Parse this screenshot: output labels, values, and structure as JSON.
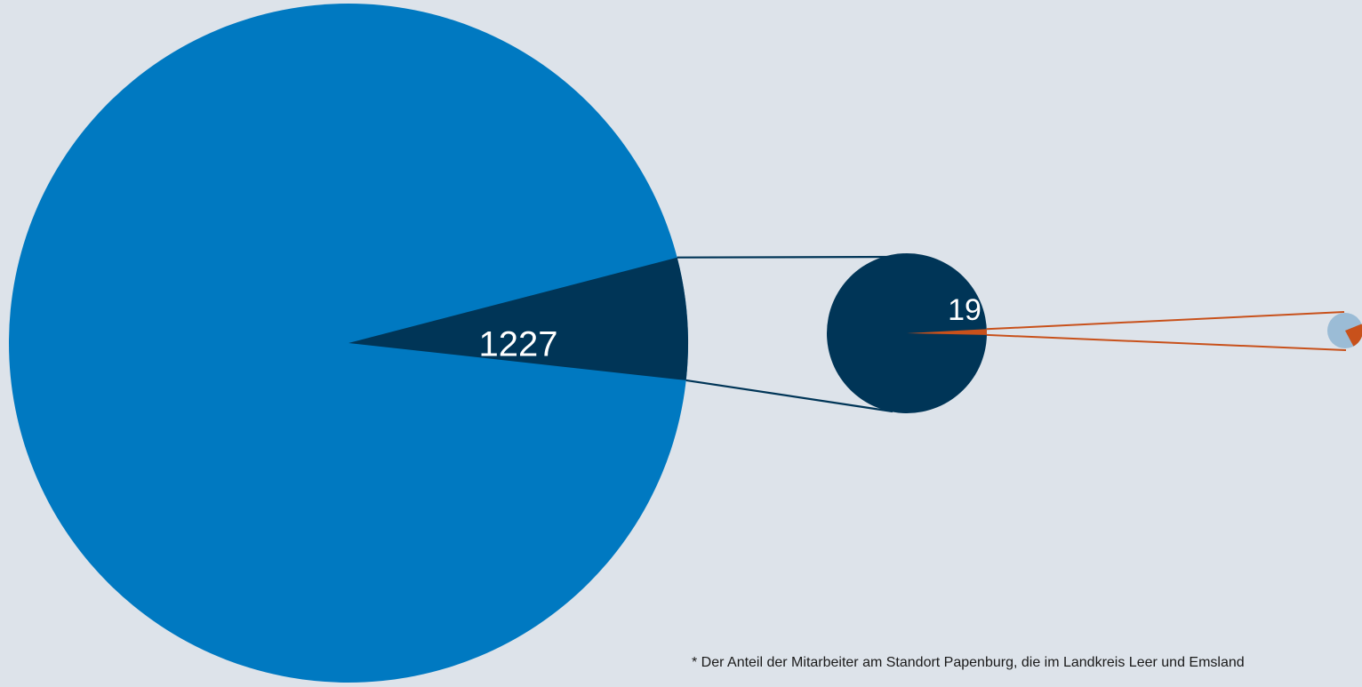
{
  "chart_data": {
    "type": "pie",
    "title": "",
    "charts": [
      {
        "name": "",
        "slices": [
          {
            "value": null,
            "label": "",
            "color": "#0079c1"
          },
          {
            "value": 1227,
            "label": "1227",
            "color": "#003557"
          }
        ]
      },
      {
        "name": "",
        "slices": [
          {
            "value": null,
            "label": "",
            "color": "#003557"
          },
          {
            "value": 19,
            "label": "19",
            "color": "#c8511b"
          }
        ]
      },
      {
        "name": "",
        "slices": [
          {
            "value": null,
            "label": "",
            "color": "#9bbcd6"
          },
          {
            "value": null,
            "label": "",
            "color": "#c8511b"
          }
        ]
      }
    ],
    "footnote": "* Der Anteil der Mitarbeiter am Standort Papenburg, die im Landkreis Leer und Emsland"
  },
  "colors": {
    "background": "#dde3ea",
    "main_blue": "#0079c1",
    "dark_navy": "#003557",
    "orange": "#c8511b",
    "light_blue": "#9bbcd6"
  }
}
